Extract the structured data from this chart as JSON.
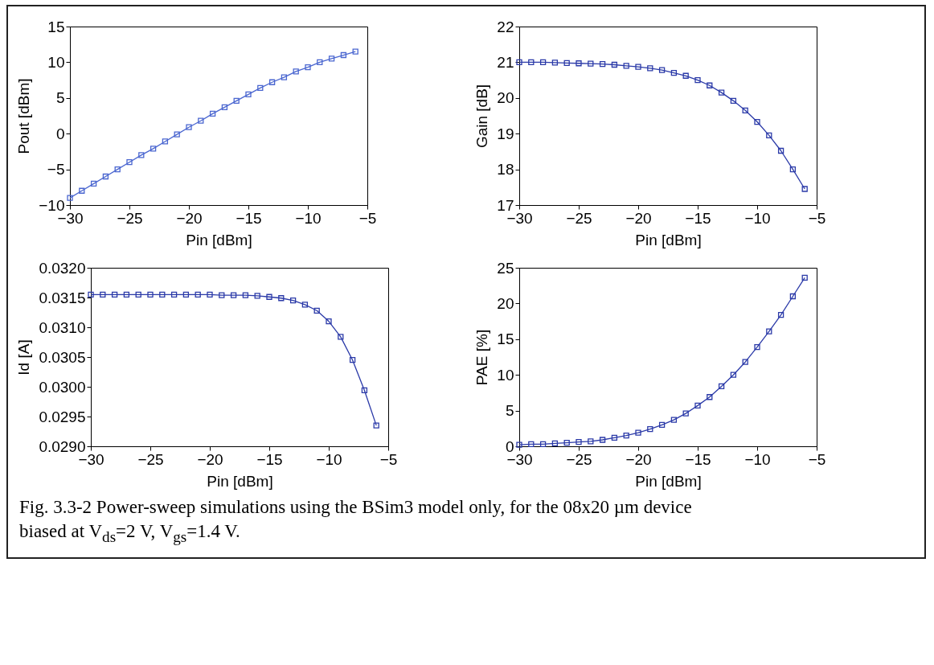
{
  "chart_data": [
    {
      "type": "line",
      "xlabel": "Pin [dBm]",
      "ylabel": "Pout [dBm]",
      "x": [
        -30,
        -29,
        -28,
        -27,
        -26,
        -25,
        -24,
        -23,
        -22,
        -21,
        -20,
        -19,
        -18,
        -17,
        -16,
        -15,
        -14,
        -13,
        -12,
        -11,
        -10,
        -9,
        -8,
        -7,
        -6
      ],
      "series": [
        {
          "color": "#4a66d0",
          "values": [
            -9.0,
            -8.0,
            -7.0,
            -6.0,
            -5.0,
            -4.0,
            -3.0,
            -2.1,
            -1.1,
            -0.1,
            0.9,
            1.8,
            2.8,
            3.7,
            4.6,
            5.5,
            6.4,
            7.2,
            7.9,
            8.7,
            9.3,
            10.0,
            10.5,
            11.0,
            11.5
          ]
        }
      ],
      "xlim": [
        -30,
        -5
      ],
      "xticks": [
        -30,
        -25,
        -20,
        -15,
        -10,
        -5
      ],
      "ylim": [
        -10,
        15
      ],
      "yticks": [
        -10,
        -5,
        0,
        5,
        10,
        15
      ],
      "grid": false,
      "marker": "square",
      "line_style": "solid",
      "annotations": [
        "Fig. 3.3-2 Power-sweep simulations using the BSim3 model only, for the 08x20 µm device biased at V$_{ds}$=2 V, V$_{gs}$=1.4 V."
      ]
    },
    {
      "type": "line",
      "xlabel": "Pin [dBm]",
      "ylabel": "Gain [dB]",
      "x": [
        -30,
        -29,
        -28,
        -27,
        -26,
        -25,
        -24,
        -23,
        -22,
        -21,
        -20,
        -19,
        -18,
        -17,
        -16,
        -15,
        -14,
        -13,
        -12,
        -11,
        -10,
        -9,
        -8,
        -7,
        -6
      ],
      "series": [
        {
          "color": "#2b3aa8",
          "values": [
            21.0,
            21.0,
            21.0,
            20.99,
            20.98,
            20.97,
            20.96,
            20.95,
            20.93,
            20.9,
            20.87,
            20.83,
            20.78,
            20.7,
            20.62,
            20.5,
            20.35,
            20.15,
            19.92,
            19.65,
            19.33,
            18.95,
            18.52,
            18.0,
            17.45
          ]
        }
      ],
      "xlim": [
        -30,
        -5
      ],
      "xticks": [
        -30,
        -25,
        -20,
        -15,
        -10,
        -5
      ],
      "ylim": [
        17,
        22
      ],
      "yticks": [
        17,
        18,
        19,
        20,
        21,
        22
      ],
      "grid": false,
      "marker": "square",
      "line_style": "solid"
    },
    {
      "type": "line",
      "xlabel": "Pin [dBm]",
      "ylabel": "Id [A]",
      "x": [
        -30,
        -29,
        -28,
        -27,
        -26,
        -25,
        -24,
        -23,
        -22,
        -21,
        -20,
        -19,
        -18,
        -17,
        -16,
        -15,
        -14,
        -13,
        -12,
        -11,
        -10,
        -9,
        -8,
        -7,
        -6
      ],
      "series": [
        {
          "color": "#2b3aa8",
          "values": [
            0.03155,
            0.03155,
            0.03155,
            0.03155,
            0.03155,
            0.03155,
            0.03155,
            0.03155,
            0.03155,
            0.03155,
            0.03155,
            0.03154,
            0.03154,
            0.03154,
            0.03153,
            0.03151,
            0.03149,
            0.03145,
            0.03138,
            0.03128,
            0.0311,
            0.03084,
            0.03045,
            0.02994,
            0.02935
          ]
        }
      ],
      "xlim": [
        -30,
        -5
      ],
      "xticks": [
        -30,
        -25,
        -20,
        -15,
        -10,
        -5
      ],
      "ylim": [
        0.029,
        0.032
      ],
      "yticks": [
        {
          "value": 0.029,
          "label": "0.0290"
        },
        {
          "value": 0.0295,
          "label": "0.0295"
        },
        {
          "value": 0.03,
          "label": "0.0300"
        },
        {
          "value": 0.0305,
          "label": "0.0305"
        },
        {
          "value": 0.031,
          "label": "0.0310"
        },
        {
          "value": 0.0315,
          "label": "0.0315"
        },
        {
          "value": 0.032,
          "label": "0.0320"
        }
      ],
      "grid": false,
      "marker": "square",
      "line_style": "solid"
    },
    {
      "type": "line",
      "xlabel": "Pin [dBm]",
      "ylabel": "PAE [%]",
      "x": [
        -30,
        -29,
        -28,
        -27,
        -26,
        -25,
        -24,
        -23,
        -22,
        -21,
        -20,
        -19,
        -18,
        -17,
        -16,
        -15,
        -14,
        -13,
        -12,
        -11,
        -10,
        -9,
        -8,
        -7,
        -6
      ],
      "series": [
        {
          "color": "#2b3aa8",
          "values": [
            0.2,
            0.3,
            0.3,
            0.4,
            0.5,
            0.6,
            0.7,
            0.9,
            1.2,
            1.5,
            1.9,
            2.4,
            3.0,
            3.7,
            4.6,
            5.7,
            6.9,
            8.4,
            10.0,
            11.8,
            13.9,
            16.1,
            18.4,
            21.0,
            23.6
          ]
        }
      ],
      "xlim": [
        -30,
        -5
      ],
      "xticks": [
        -30,
        -25,
        -20,
        -15,
        -10,
        -5
      ],
      "ylim": [
        0,
        25
      ],
      "yticks": [
        0,
        5,
        10,
        15,
        20,
        25
      ],
      "grid": false,
      "marker": "square",
      "line_style": "solid"
    }
  ]
}
